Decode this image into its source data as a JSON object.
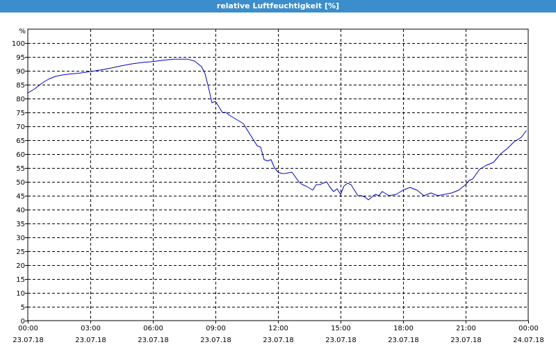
{
  "window": {
    "title": "relative Luftfeuchtigkeit [%]"
  },
  "colors": {
    "titlebar": "#3c8dcb",
    "line": "#0000cc",
    "grid": "#000000"
  },
  "chart_data": {
    "type": "line",
    "title": "relative Luftfeuchtigkeit [%]",
    "ylabel": "%",
    "xlabel": "",
    "ylim": [
      0,
      105
    ],
    "yticks": [
      0,
      5,
      10,
      15,
      20,
      25,
      30,
      35,
      40,
      45,
      50,
      55,
      60,
      65,
      70,
      75,
      80,
      85,
      90,
      95,
      100
    ],
    "xlim": [
      "23.07.18 00:00",
      "24.07.18 00:00"
    ],
    "xticks": [
      {
        "time": "00:00",
        "date": "23.07.18"
      },
      {
        "time": "03:00",
        "date": "23.07.18"
      },
      {
        "time": "06:00",
        "date": "23.07.18"
      },
      {
        "time": "09:00",
        "date": "23.07.18"
      },
      {
        "time": "12:00",
        "date": "23.07.18"
      },
      {
        "time": "15:00",
        "date": "23.07.18"
      },
      {
        "time": "18:00",
        "date": "23.07.18"
      },
      {
        "time": "21:00",
        "date": "23.07.18"
      },
      {
        "time": "00:00",
        "date": "24.07.18"
      }
    ],
    "grid": true,
    "series": [
      {
        "x": [
          "00:00",
          "00:20",
          "00:40",
          "01:00",
          "01:20",
          "01:40",
          "02:00",
          "02:30",
          "03:00",
          "03:30",
          "04:00",
          "04:30",
          "05:00",
          "05:30",
          "06:00",
          "06:30",
          "07:00",
          "07:20",
          "07:40",
          "08:00",
          "08:20",
          "08:30",
          "08:40",
          "08:50",
          "09:00",
          "09:10",
          "09:20",
          "09:30",
          "09:40",
          "10:00",
          "10:20",
          "10:40",
          "11:00",
          "11:10",
          "11:20",
          "11:30",
          "11:40",
          "11:50",
          "12:00",
          "12:10",
          "12:20",
          "12:40",
          "13:00",
          "13:10",
          "13:20",
          "13:40",
          "13:50",
          "14:00",
          "14:20",
          "14:30",
          "14:40",
          "14:50",
          "15:00",
          "15:10",
          "15:20",
          "15:30",
          "15:50",
          "16:00",
          "16:10",
          "16:20",
          "16:30",
          "16:40",
          "16:50",
          "17:00",
          "17:20",
          "17:40",
          "18:00",
          "18:10",
          "18:20",
          "18:40",
          "19:00",
          "19:20",
          "19:40",
          "20:00",
          "20:20",
          "20:40",
          "21:00",
          "21:10",
          "21:20",
          "21:40",
          "22:00",
          "22:20",
          "22:40",
          "23:00",
          "23:20",
          "23:40",
          "23:55"
        ],
        "values": [
          82,
          83.5,
          85.5,
          87,
          88,
          88.5,
          88.8,
          89.2,
          89.7,
          90.3,
          91,
          91.8,
          92.5,
          93,
          93.3,
          93.8,
          94.2,
          94.2,
          94.2,
          93.5,
          91.5,
          89,
          84,
          78.5,
          79,
          77,
          75,
          75,
          74,
          72.5,
          71,
          67,
          63,
          62.5,
          58,
          57.5,
          58,
          55,
          53.5,
          53,
          53,
          53.5,
          50,
          49,
          48.5,
          47,
          49,
          49,
          50,
          48,
          46.5,
          47.5,
          45.5,
          48.5,
          49.5,
          49,
          45,
          45,
          44.5,
          43.5,
          44.5,
          45.5,
          45,
          46.5,
          45,
          45.5,
          47,
          47.5,
          48,
          47,
          45,
          46,
          45,
          45.5,
          46,
          47,
          49,
          50.5,
          51,
          54.5,
          56,
          57,
          60,
          62,
          64.5,
          66,
          68.5
        ]
      }
    ]
  }
}
